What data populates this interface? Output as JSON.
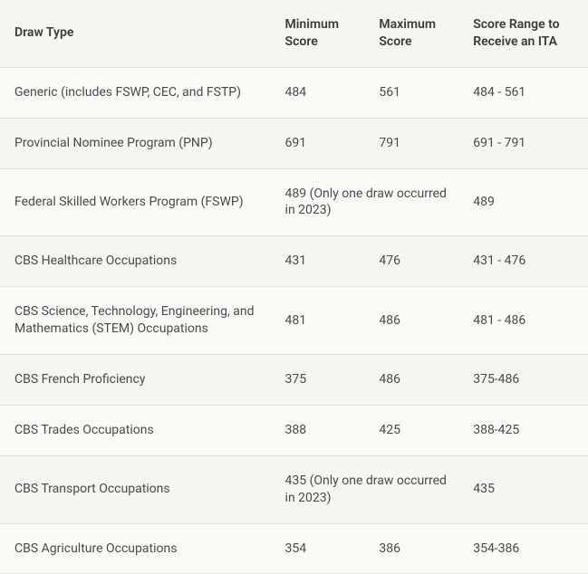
{
  "table": {
    "type": "table",
    "background_color": "#f6f5f1",
    "row_alt_color": "#fbfaf7",
    "border_color": "#e2e0da",
    "text_color": "#4a4a4a",
    "header_text_color": "#3a3a3a",
    "font_size_pt": 10.5,
    "header_font_weight": 600,
    "column_widths_pct": [
      46,
      16,
      16,
      22
    ],
    "columns": [
      "Draw Type",
      "Minimum Score",
      "Maximum Score",
      "Score Range to Receive an ITA"
    ],
    "rows": [
      {
        "draw_type": "Generic (includes FSWP, CEC, and FSTP)",
        "min": "484",
        "max": "561",
        "range": "484 - 561"
      },
      {
        "draw_type": "Provincial Nominee Program (PNP)",
        "min": "691",
        "max": "791",
        "range": "691 - 791"
      },
      {
        "draw_type": "Federal Skilled Workers Program (FSWP)",
        "min": "489 (Only one draw occurred in 2023)",
        "max": "",
        "range": "489"
      },
      {
        "draw_type": "CBS Healthcare Occupations",
        "min": "431",
        "max": "476",
        "range": "431 - 476"
      },
      {
        "draw_type": "CBS Science, Technology, Engineering, and Mathematics (STEM) Occupations",
        "min": "481",
        "max": "486",
        "range": "481 - 486"
      },
      {
        "draw_type": "CBS French Proficiency",
        "min": "375",
        "max": "486",
        "range": "375-486"
      },
      {
        "draw_type": "CBS Trades Occupations",
        "min": "388",
        "max": "425",
        "range": "388-425"
      },
      {
        "draw_type": "CBS Transport Occupations",
        "min": "435 (Only one draw occurred in 2023)",
        "max": "",
        "range": "435"
      },
      {
        "draw_type": "CBS Agriculture Occupations",
        "min": "354",
        "max": "386",
        "range": "354-386"
      }
    ]
  }
}
